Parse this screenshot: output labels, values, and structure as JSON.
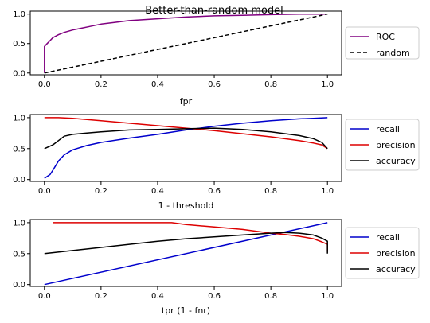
{
  "figure_title": "Better-than-random model",
  "chart_data": [
    {
      "type": "line",
      "xlabel": "fpr",
      "ylabel": "",
      "xlim": [
        -0.05,
        1.05
      ],
      "ylim": [
        -0.03,
        1.05
      ],
      "xticks": [
        "0.0",
        "0.2",
        "0.4",
        "0.6",
        "0.8",
        "1.0"
      ],
      "yticks": [
        "0.0",
        "0.5",
        "1.0"
      ],
      "legend_position": "outside-right",
      "series": [
        {
          "name": "ROC",
          "color": "#800080",
          "style": "solid",
          "x": [
            0.0,
            0.0,
            0.01,
            0.02,
            0.03,
            0.05,
            0.07,
            0.1,
            0.13,
            0.16,
            0.2,
            0.25,
            0.3,
            0.4,
            0.5,
            0.6,
            0.7,
            0.8,
            0.9,
            1.0
          ],
          "y": [
            0.0,
            0.45,
            0.5,
            0.55,
            0.6,
            0.65,
            0.69,
            0.73,
            0.76,
            0.79,
            0.83,
            0.86,
            0.89,
            0.92,
            0.95,
            0.97,
            0.98,
            0.99,
            1.0,
            1.0
          ]
        },
        {
          "name": "random",
          "color": "#000000",
          "style": "dashed",
          "x": [
            0.0,
            1.0
          ],
          "y": [
            0.0,
            1.0
          ]
        }
      ]
    },
    {
      "type": "line",
      "xlabel": "1 - threshold",
      "ylabel": "",
      "xlim": [
        -0.05,
        1.05
      ],
      "ylim": [
        -0.03,
        1.05
      ],
      "xticks": [
        "0.0",
        "0.2",
        "0.4",
        "0.6",
        "0.8",
        "1.0"
      ],
      "yticks": [
        "0.0",
        "0.5",
        "1.0"
      ],
      "legend_position": "outside-right",
      "series": [
        {
          "name": "recall",
          "color": "#0000cc",
          "style": "solid",
          "x": [
            0.0,
            0.02,
            0.03,
            0.05,
            0.07,
            0.1,
            0.15,
            0.2,
            0.3,
            0.4,
            0.5,
            0.6,
            0.7,
            0.8,
            0.9,
            0.95,
            1.0
          ],
          "y": [
            0.02,
            0.08,
            0.15,
            0.3,
            0.4,
            0.48,
            0.55,
            0.6,
            0.67,
            0.73,
            0.8,
            0.86,
            0.91,
            0.95,
            0.98,
            0.99,
            1.0
          ]
        },
        {
          "name": "precision",
          "color": "#dd0000",
          "style": "solid",
          "x": [
            0.0,
            0.05,
            0.1,
            0.2,
            0.3,
            0.4,
            0.5,
            0.6,
            0.7,
            0.8,
            0.9,
            0.95,
            0.98,
            1.0
          ],
          "y": [
            1.0,
            1.0,
            0.99,
            0.95,
            0.91,
            0.87,
            0.83,
            0.79,
            0.74,
            0.69,
            0.63,
            0.59,
            0.56,
            0.5
          ]
        },
        {
          "name": "accuracy",
          "color": "#000000",
          "style": "solid",
          "x": [
            0.0,
            0.03,
            0.05,
            0.07,
            0.1,
            0.15,
            0.2,
            0.3,
            0.4,
            0.5,
            0.6,
            0.7,
            0.8,
            0.9,
            0.95,
            0.98,
            1.0
          ],
          "y": [
            0.5,
            0.56,
            0.63,
            0.7,
            0.73,
            0.75,
            0.77,
            0.8,
            0.81,
            0.82,
            0.83,
            0.81,
            0.77,
            0.71,
            0.66,
            0.6,
            0.5
          ]
        }
      ]
    },
    {
      "type": "line",
      "xlabel": "tpr (1 - fnr)",
      "ylabel": "",
      "xlim": [
        -0.05,
        1.05
      ],
      "ylim": [
        -0.03,
        1.05
      ],
      "xticks": [
        "0.0",
        "0.2",
        "0.4",
        "0.6",
        "0.8",
        "1.0"
      ],
      "yticks": [
        "0.0",
        "0.5",
        "1.0"
      ],
      "legend_position": "outside-right",
      "series": [
        {
          "name": "recall",
          "color": "#0000cc",
          "style": "solid",
          "x": [
            0.0,
            1.0
          ],
          "y": [
            0.0,
            1.0
          ]
        },
        {
          "name": "precision",
          "color": "#dd0000",
          "style": "solid",
          "x": [
            0.03,
            0.1,
            0.2,
            0.3,
            0.4,
            0.45,
            0.5,
            0.6,
            0.7,
            0.75,
            0.8,
            0.85,
            0.9,
            0.95,
            0.98,
            1.0,
            1.0
          ],
          "y": [
            1.0,
            1.0,
            1.0,
            1.0,
            1.0,
            1.0,
            0.97,
            0.93,
            0.89,
            0.86,
            0.83,
            0.81,
            0.78,
            0.74,
            0.69,
            0.65,
            0.53
          ]
        },
        {
          "name": "accuracy",
          "color": "#000000",
          "style": "solid",
          "x": [
            0.0,
            0.1,
            0.2,
            0.3,
            0.4,
            0.5,
            0.6,
            0.7,
            0.8,
            0.85,
            0.9,
            0.95,
            0.98,
            1.0,
            1.0
          ],
          "y": [
            0.5,
            0.55,
            0.6,
            0.65,
            0.7,
            0.74,
            0.77,
            0.8,
            0.83,
            0.84,
            0.83,
            0.8,
            0.75,
            0.7,
            0.5
          ]
        }
      ]
    }
  ]
}
